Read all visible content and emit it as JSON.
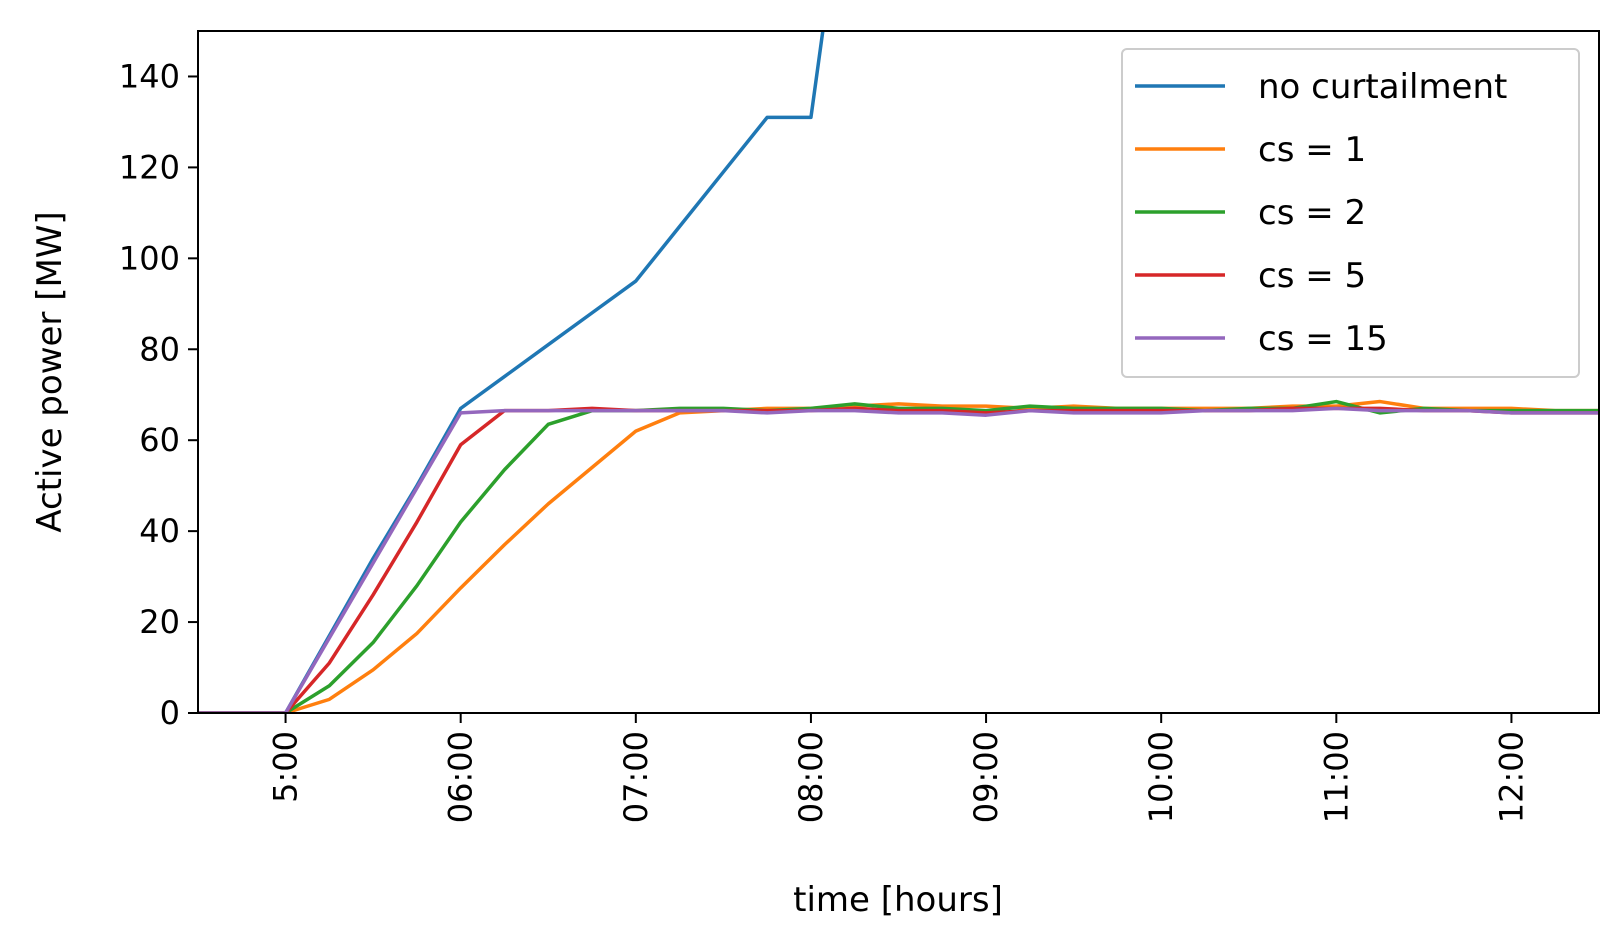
{
  "chart_data": {
    "type": "line",
    "title": "",
    "xlabel": "time [hours]",
    "ylabel": "Active power [MW]",
    "xlim": [
      "04:30",
      "12:30"
    ],
    "ylim": [
      0,
      150
    ],
    "x_ticks": [
      "5:00",
      "06:00",
      "07:00",
      "08:00",
      "09:00",
      "10:00",
      "11:00",
      "12:00"
    ],
    "y_ticks": [
      "0",
      "20",
      "40",
      "60",
      "80",
      "100",
      "120",
      "140"
    ],
    "grid": false,
    "legend_position": "top-right",
    "x": [
      "04:30",
      "04:45",
      "05:00",
      "05:15",
      "05:30",
      "05:45",
      "06:00",
      "06:15",
      "06:30",
      "06:45",
      "07:00",
      "07:15",
      "07:30",
      "07:45",
      "08:00",
      "08:15",
      "08:30",
      "08:45",
      "09:00",
      "09:15",
      "09:30",
      "09:45",
      "10:00",
      "10:15",
      "10:30",
      "10:45",
      "11:00",
      "11:15",
      "11:30",
      "11:45",
      "12:00",
      "12:15",
      "12:30"
    ],
    "series": [
      {
        "name": "no curtailment",
        "color": "#1f77b4",
        "values": [
          0,
          0,
          0,
          17,
          34,
          50,
          67,
          74,
          81,
          88,
          95,
          107,
          119,
          131,
          131,
          null,
          null,
          null,
          null,
          null,
          null,
          null,
          null,
          null,
          null,
          null,
          null,
          null,
          null,
          null,
          null,
          null,
          null
        ]
      },
      {
        "name": "cs = 1",
        "color": "#ff7f0e",
        "values": [
          0,
          0,
          0,
          3,
          9.5,
          17.5,
          27.5,
          37,
          46,
          54,
          62,
          66,
          66.5,
          67,
          67,
          67.5,
          68,
          67.5,
          67.5,
          67,
          67.5,
          67,
          67,
          67,
          67,
          67.5,
          67.5,
          68.5,
          67,
          67,
          67,
          66.5,
          66.5
        ]
      },
      {
        "name": "cs = 2",
        "color": "#2ca02c",
        "values": [
          0,
          0,
          0,
          6,
          15.5,
          28,
          42,
          53.5,
          63.5,
          66.5,
          66.5,
          67,
          67,
          66.5,
          67,
          68,
          67,
          67,
          66.5,
          67.5,
          67,
          67,
          67,
          66.5,
          67,
          67,
          68.5,
          66,
          67,
          66.5,
          66.5,
          66.5,
          66.5
        ]
      },
      {
        "name": "cs = 5",
        "color": "#d62728",
        "values": [
          0,
          0,
          0,
          11,
          26,
          42,
          59,
          66.5,
          66.5,
          67,
          66.5,
          66.5,
          66.5,
          66.5,
          66.5,
          67,
          66.5,
          66.5,
          66,
          66.5,
          66.5,
          66.5,
          66.5,
          66.5,
          66.5,
          67,
          67,
          67,
          66.5,
          66.5,
          66,
          66,
          66
        ]
      },
      {
        "name": "cs = 15",
        "color": "#9467bd",
        "values": [
          0,
          0,
          0,
          16.5,
          33,
          49.5,
          66,
          66.5,
          66.5,
          66.5,
          66.5,
          66.5,
          66.5,
          66,
          66.5,
          66.5,
          66,
          66,
          65.5,
          66.5,
          66,
          66,
          66,
          66.5,
          66.5,
          66.5,
          67,
          66.5,
          66.5,
          66.5,
          66,
          66,
          66
        ]
      }
    ]
  }
}
